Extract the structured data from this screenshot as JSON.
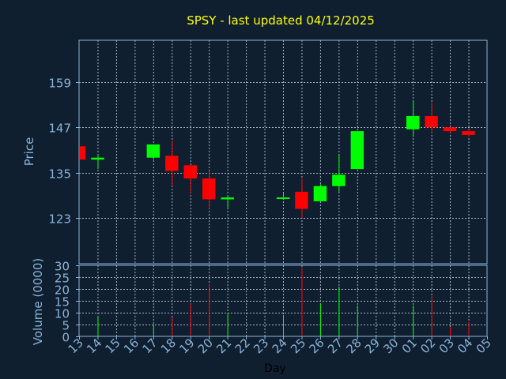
{
  "chart_data": {
    "type": "candlestick",
    "title": "SPSY - last updated 04/12/2025",
    "xlabel": "Day",
    "price": {
      "ylabel": "Price",
      "ylim": [
        111,
        170
      ],
      "yticks": [
        123,
        135,
        147,
        159
      ],
      "grid": true
    },
    "volume": {
      "ylabel": "Volume (0000)",
      "ylim": [
        0,
        30
      ],
      "yticks": [
        0,
        5,
        10,
        15,
        20,
        25,
        30
      ],
      "grid": true
    },
    "x_tick_labels": [
      "13",
      "14",
      "15",
      "16",
      "17",
      "18",
      "19",
      "20",
      "21",
      "22",
      "23",
      "24",
      "25",
      "26",
      "27",
      "28",
      "29",
      "30",
      "01",
      "02",
      "03",
      "04",
      "05"
    ],
    "candles": [
      {
        "day": "13",
        "open": 142,
        "high": 142,
        "low": 138,
        "close": 138.5,
        "volume": 0
      },
      {
        "day": "14",
        "open": 138.5,
        "high": 140,
        "low": 136,
        "close": 139,
        "volume": 8
      },
      {
        "day": "17",
        "open": 139,
        "high": 142.5,
        "low": 138.5,
        "close": 142.5,
        "volume": 5
      },
      {
        "day": "18",
        "open": 139.5,
        "high": 143.5,
        "low": 131.5,
        "close": 135.5,
        "volume": 8
      },
      {
        "day": "19",
        "open": 137,
        "high": 137,
        "low": 129.5,
        "close": 133.5,
        "volume": 14
      },
      {
        "day": "20",
        "open": 133.5,
        "high": 135.5,
        "low": 125.5,
        "close": 128,
        "volume": 22
      },
      {
        "day": "21",
        "open": 128,
        "high": 129,
        "low": 125.5,
        "close": 128.5,
        "volume": 10
      },
      {
        "day": "24",
        "open": 128.5,
        "high": 129.5,
        "low": 128,
        "close": 128.5,
        "volume": 9
      },
      {
        "day": "25",
        "open": 130,
        "high": 133.5,
        "low": 123,
        "close": 125.5,
        "volume": 29
      },
      {
        "day": "26",
        "open": 127.5,
        "high": 132,
        "low": 127.5,
        "close": 131.5,
        "volume": 14
      },
      {
        "day": "27",
        "open": 131.5,
        "high": 140,
        "low": 130,
        "close": 134.5,
        "volume": 21
      },
      {
        "day": "28",
        "open": 136,
        "high": 146,
        "low": 136,
        "close": 146,
        "volume": 13
      },
      {
        "day": "01",
        "open": 146.5,
        "high": 154,
        "low": 144.5,
        "close": 150,
        "volume": 13
      },
      {
        "day": "02",
        "open": 150,
        "high": 153.5,
        "low": 145.5,
        "close": 147,
        "volume": 17
      },
      {
        "day": "03",
        "open": 147,
        "high": 147,
        "low": 145.5,
        "close": 146,
        "volume": 4
      },
      {
        "day": "04",
        "open": 146,
        "high": 146.5,
        "low": 144.5,
        "close": 145,
        "volume": 6
      }
    ],
    "colors": {
      "background": "#0f1f30",
      "plot_border": "#8ab4d8",
      "grid": "#9fb3c8",
      "up": "#00ff00",
      "down": "#ff0000",
      "title": "#ffff00",
      "tick_text": "#8ab4d8",
      "xlabel": "#000000"
    }
  }
}
